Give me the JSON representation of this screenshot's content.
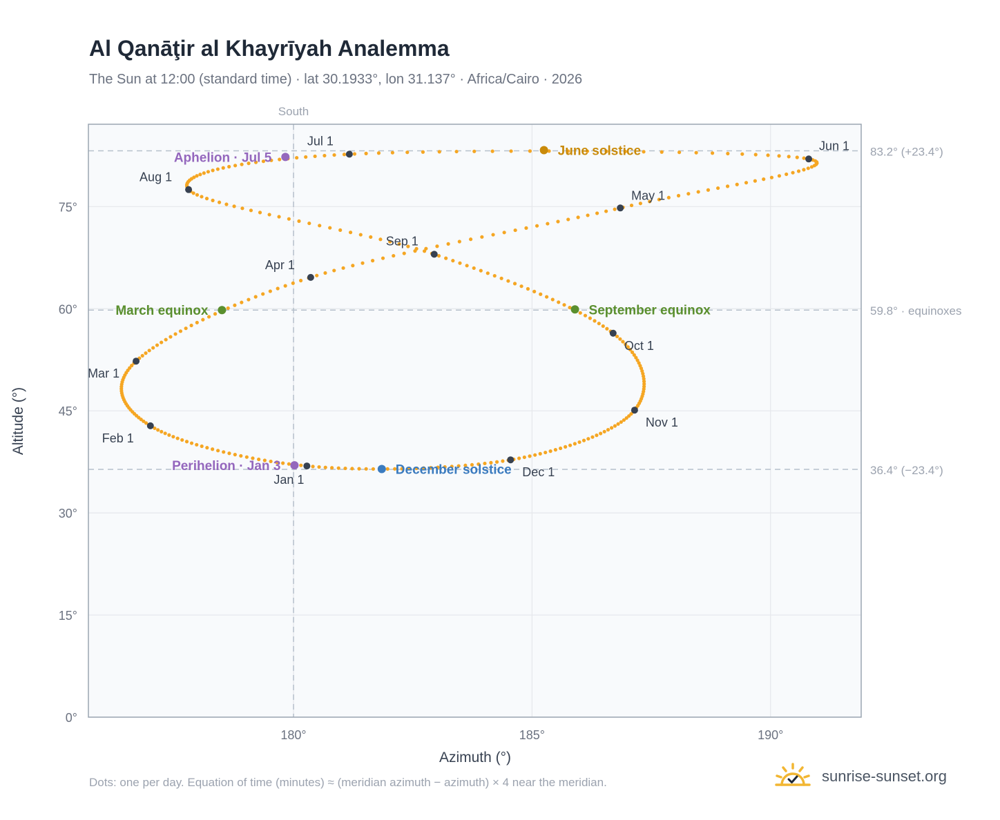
{
  "header": {
    "title": "Al Qanāţir al Khayrīyah Analemma",
    "subtitle": "The Sun at 12:00 (standard time) · lat 30.1933°, lon 31.137° · Africa/Cairo · 2026"
  },
  "footer": {
    "note": "Dots: one per day. Equation of time (minutes) ≈ (meridian azimuth − azimuth) × 4 near the meridian.",
    "brand": "sunrise-sunset.org"
  },
  "colors": {
    "curve": "#f5a623",
    "month_marker": "#374151",
    "solstice_june": "#c98a0a",
    "solstice_december": "#3b7bbf",
    "equinox": "#5a8f2e",
    "apsis": "#9467bd",
    "plot_bg": "#f8fafc",
    "grid": "#e5e7eb",
    "frame": "#9aa5b1"
  },
  "chart_data": {
    "type": "scatter",
    "xlabel": "Azimuth (°)",
    "ylabel": "Altitude (°)",
    "xlim": [
      175.7,
      191.9
    ],
    "ylim": [
      0,
      87.1
    ],
    "x_ticks": [
      {
        "value": 180,
        "label": "180°"
      },
      {
        "value": 185,
        "label": "185°"
      },
      {
        "value": 190,
        "label": "190°"
      }
    ],
    "y_ticks": [
      {
        "value": 0,
        "label": "0°"
      },
      {
        "value": 15,
        "label": "15°"
      },
      {
        "value": 30,
        "label": "30°"
      },
      {
        "value": 45,
        "label": "45°"
      },
      {
        "value": 60,
        "label": "60°"
      },
      {
        "value": 75,
        "label": "75°"
      }
    ],
    "grid": true,
    "meridian": {
      "azimuth": 180,
      "label": "South"
    },
    "reference_lines": [
      {
        "altitude": 83.2,
        "label": "83.2° (+23.4°)"
      },
      {
        "altitude": 59.8,
        "label": "59.8° · equinoxes"
      },
      {
        "altitude": 36.4,
        "label": "36.4° (−23.4°)"
      }
    ],
    "series": [
      {
        "type": "daily_dots",
        "points": [
          [
            180.28,
            36.9
          ],
          [
            177.0,
            42.8
          ],
          [
            176.7,
            52.3
          ],
          [
            180.36,
            64.6
          ],
          [
            186.85,
            74.8
          ],
          [
            190.8,
            82.0
          ],
          [
            181.17,
            82.7
          ],
          [
            177.8,
            77.5
          ],
          [
            182.95,
            68.0
          ],
          [
            186.7,
            56.4
          ],
          [
            187.15,
            45.1
          ],
          [
            184.55,
            37.8
          ]
        ]
      }
    ],
    "month_markers": [
      {
        "label": "Jan 1",
        "azimuth": 180.28,
        "altitude": 36.9
      },
      {
        "label": "Feb 1",
        "azimuth": 177.0,
        "altitude": 42.8
      },
      {
        "label": "Mar 1",
        "azimuth": 176.7,
        "altitude": 52.3
      },
      {
        "label": "Apr 1",
        "azimuth": 180.36,
        "altitude": 64.6
      },
      {
        "label": "May 1",
        "azimuth": 186.85,
        "altitude": 74.8
      },
      {
        "label": "Jun 1",
        "azimuth": 190.8,
        "altitude": 82.0
      },
      {
        "label": "Jul 1",
        "azimuth": 181.17,
        "altitude": 82.7
      },
      {
        "label": "Aug 1",
        "azimuth": 177.8,
        "altitude": 77.5
      },
      {
        "label": "Sep 1",
        "azimuth": 182.95,
        "altitude": 68.0
      },
      {
        "label": "Oct 1",
        "azimuth": 186.7,
        "altitude": 56.4
      },
      {
        "label": "Nov 1",
        "azimuth": 187.15,
        "altitude": 45.1
      },
      {
        "label": "Dec 1",
        "azimuth": 184.55,
        "altitude": 37.8
      }
    ],
    "events": [
      {
        "label": "June solstice",
        "azimuth": 185.25,
        "altitude": 83.3,
        "kind": "solstice_june"
      },
      {
        "label": "December solstice",
        "azimuth": 181.85,
        "altitude": 36.45,
        "kind": "solstice_december"
      },
      {
        "label": "March equinox",
        "azimuth": 178.5,
        "altitude": 59.8,
        "kind": "equinox"
      },
      {
        "label": "September equinox",
        "azimuth": 185.9,
        "altitude": 59.9,
        "kind": "equinox"
      },
      {
        "label": "Perihelion · Jan 3",
        "azimuth": 180.02,
        "altitude": 37.0,
        "kind": "apsis"
      },
      {
        "label": "Aphelion · Jul 5",
        "azimuth": 179.83,
        "altitude": 82.3,
        "kind": "apsis"
      }
    ]
  }
}
